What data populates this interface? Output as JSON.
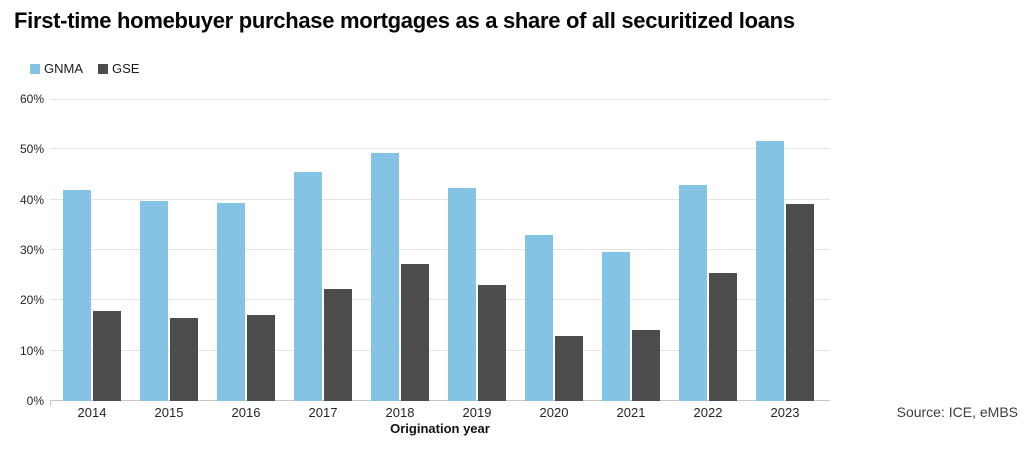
{
  "title": "First-time homebuyer purchase mortgages as a share of all securitized loans",
  "legend": [
    {
      "label": "GNMA",
      "color": "#85C3E5"
    },
    {
      "label": "GSE",
      "color": "#4D4D4D"
    }
  ],
  "xaxis_title": "Origination year",
  "source": "Source: ICE, eMBS",
  "colors": {
    "gnma_bar": "#85C3E5",
    "gse_bar": "#4D4D4D",
    "gridline": "#E3E3E3",
    "axis_line": "#C6C6C6",
    "title_text": "#050508",
    "tick_text": "#262626"
  },
  "chart_data": {
    "type": "bar",
    "categories": [
      "2014",
      "2015",
      "2016",
      "2017",
      "2018",
      "2019",
      "2020",
      "2021",
      "2022",
      "2023"
    ],
    "series": [
      {
        "name": "GNMA",
        "color": "#85C3E5",
        "values": [
          42.0,
          39.8,
          39.4,
          45.5,
          49.3,
          42.4,
          33.0,
          29.6,
          43.0,
          51.6
        ]
      },
      {
        "name": "GSE",
        "color": "#4D4D4D",
        "values": [
          17.8,
          16.4,
          17.0,
          22.2,
          27.3,
          23.1,
          12.9,
          14.1,
          25.5,
          39.2
        ]
      }
    ],
    "title": "First-time homebuyer purchase mortgages as a share of all securitized loans",
    "xlabel": "Origination year",
    "ylabel": "",
    "ylim": [
      0,
      60
    ],
    "ytick_step": 10,
    "ytick_labels": [
      "0%",
      "10%",
      "20%",
      "30%",
      "40%",
      "50%",
      "60%"
    ],
    "grid": true,
    "legend_position": "top-left"
  }
}
